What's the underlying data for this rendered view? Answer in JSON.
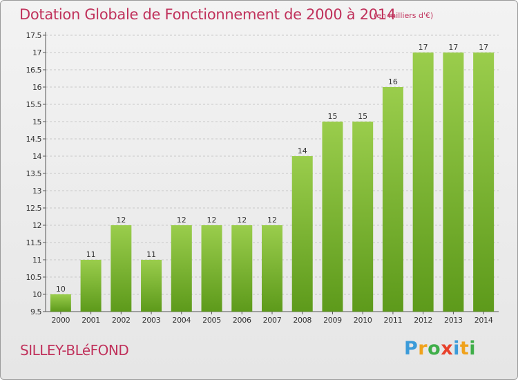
{
  "header": {
    "title": "Dotation Globale de Fonctionnement de 2000 à 2014",
    "subtitle": "(en milliers d'€)"
  },
  "footer": {
    "commune": "SILLEY-BLéFOND",
    "logo_letters": [
      "P",
      "r",
      "o",
      "x",
      "i",
      "t",
      "i"
    ],
    "logo_colors": [
      "#3b9bd9",
      "#f0a21c",
      "#3fae49",
      "#e8412b",
      "#3b9bd9",
      "#f0a21c",
      "#3fae49"
    ]
  },
  "colors": {
    "title": "#c0315b",
    "bar_top": "#9acd4c",
    "bar_bottom": "#5d9a1b",
    "axis_text": "#333333",
    "grid": "#c8c8c8"
  },
  "chart_data": {
    "type": "bar",
    "title": "Dotation Globale de Fonctionnement de 2000 à 2014",
    "subtitle": "(en milliers d'€)",
    "categories": [
      "2000",
      "2001",
      "2002",
      "2003",
      "2004",
      "2005",
      "2006",
      "2007",
      "2008",
      "2009",
      "2010",
      "2011",
      "2012",
      "2013",
      "2014"
    ],
    "values": [
      10,
      11,
      12,
      11,
      12,
      12,
      12,
      12,
      14,
      15,
      15,
      16,
      17,
      17,
      17
    ],
    "ylim": [
      9.5,
      17.5
    ],
    "yticks": [
      "9.5",
      "10",
      "10.5",
      "11",
      "11.5",
      "12",
      "12.5",
      "13",
      "13.5",
      "14",
      "14.5",
      "15",
      "15.5",
      "16",
      "16.5",
      "17",
      "17.5"
    ],
    "grid": true,
    "legend": "none",
    "xlabel": "",
    "ylabel": ""
  }
}
